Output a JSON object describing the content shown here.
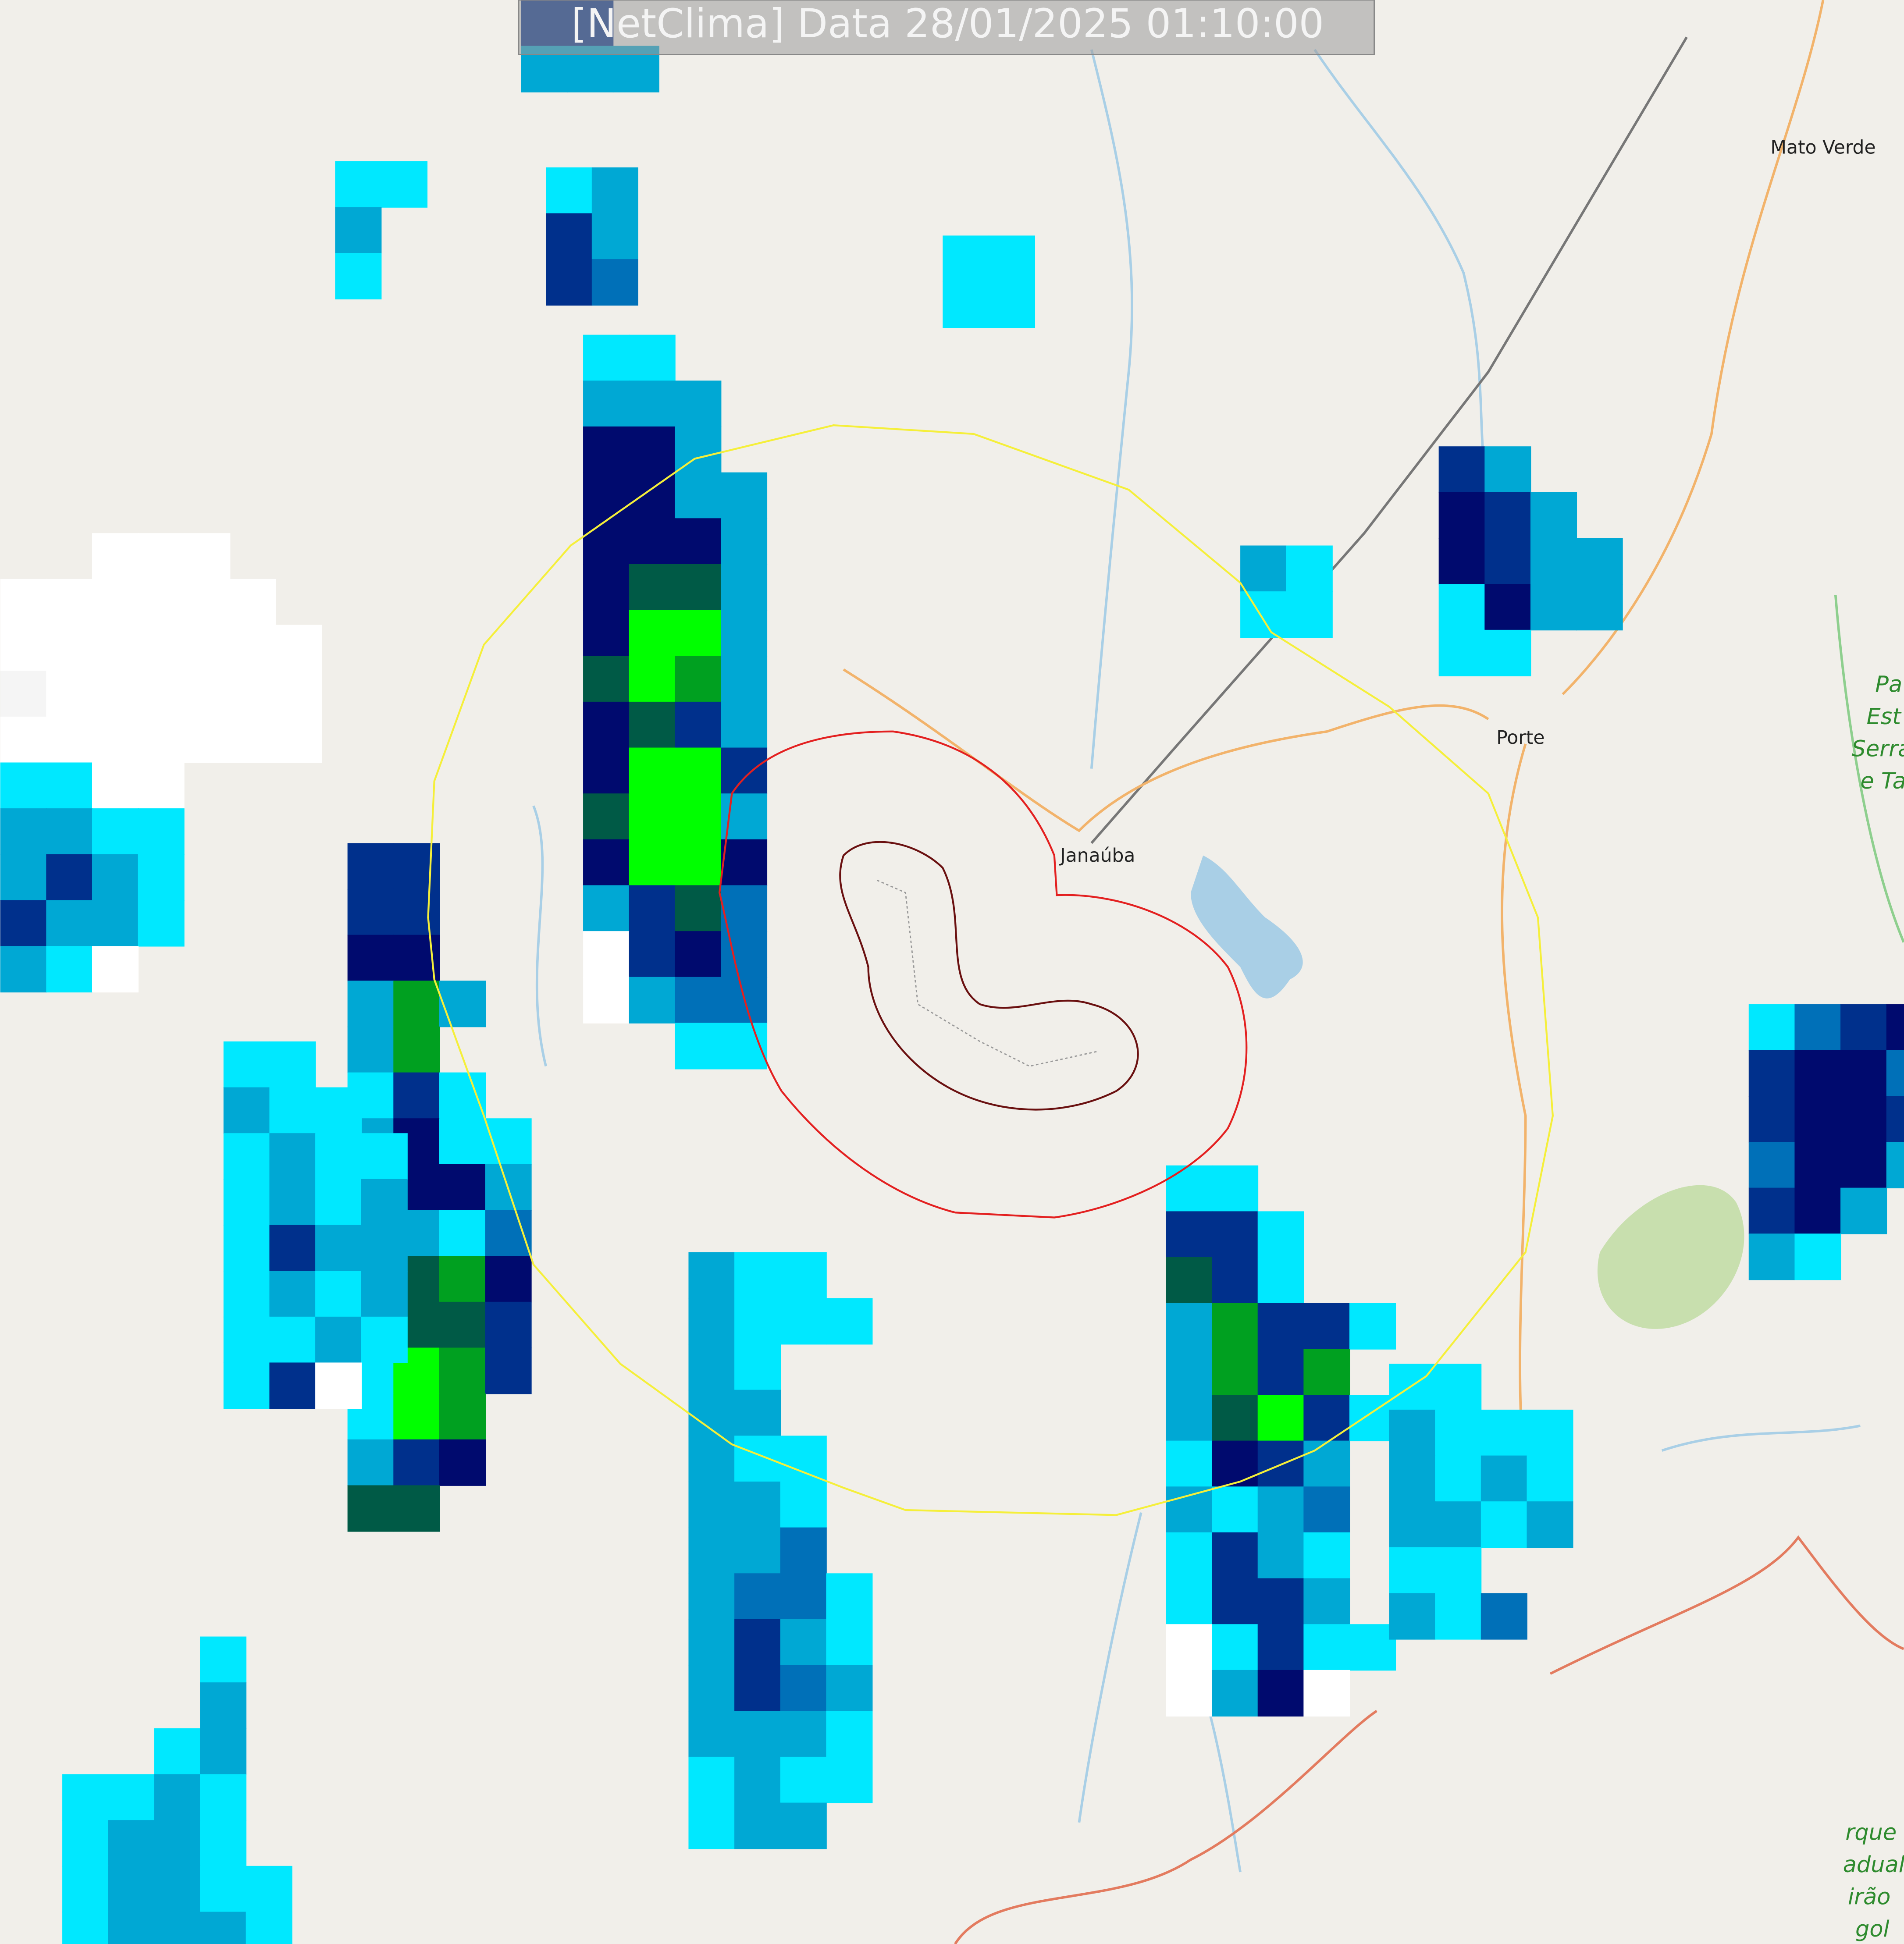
{
  "header": {
    "title": "[NetClima] Data 28/01/2025 01:10:00"
  },
  "places": [
    {
      "label": "Mato Verde"
    },
    {
      "label": "Porte"
    },
    {
      "label": "Janaúba"
    },
    {
      "label": "Pa"
    },
    {
      "label": "Est"
    },
    {
      "label": "Serra"
    },
    {
      "label": "e Ta"
    },
    {
      "label": "rque"
    },
    {
      "label": "adual"
    },
    {
      "label": "irão"
    },
    {
      "label": "gol"
    }
  ]
}
